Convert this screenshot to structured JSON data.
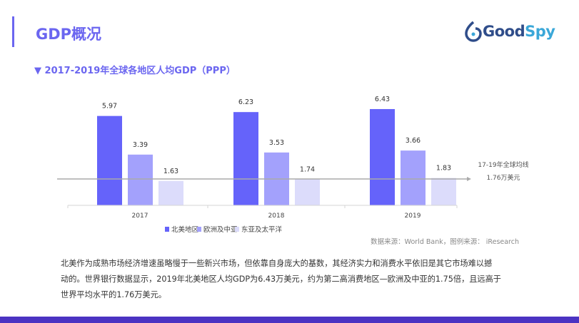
{
  "header": {
    "title": "GDP概况",
    "logo_text_a": "Good",
    "logo_text_b": "Spy"
  },
  "chart_data": {
    "type": "bar",
    "title": "2017-2019年全球各地区人均GDP（PPP）",
    "categories": [
      "2017",
      "2018",
      "2019"
    ],
    "series": [
      {
        "name": "北美地区",
        "values": [
          5.97,
          6.23,
          6.43
        ],
        "color": "#6563fa"
      },
      {
        "name": "欧洲及中亚",
        "values": [
          3.39,
          3.53,
          3.66
        ],
        "color": "#a3a1fc"
      },
      {
        "name": "东亚及太平洋",
        "values": [
          1.63,
          1.74,
          1.83
        ],
        "color": "#dcdcfb"
      }
    ],
    "reference_line": {
      "value": 1.76,
      "label_line1": "17-19年全球均线",
      "label_line2": "1.76万美元"
    },
    "legend_position": "bottom",
    "grid": false,
    "source": "数据来源：World Bank，图例来源： iResearch"
  },
  "paragraph": {
    "lines": [
      "北美作为成熟市场经济增速虽略慢于一些新兴市场，但依靠自身庞大的基数，其经济实力和消费水平依旧是其它市场难以撼",
      "动的。世界银行数据显示，2019年北美地区人均GDP为6.43万美元，约为第二高消费地区—欧洲及中亚的1.75倍，且远高于",
      "世界平均水平的1.76万美元。"
    ]
  }
}
